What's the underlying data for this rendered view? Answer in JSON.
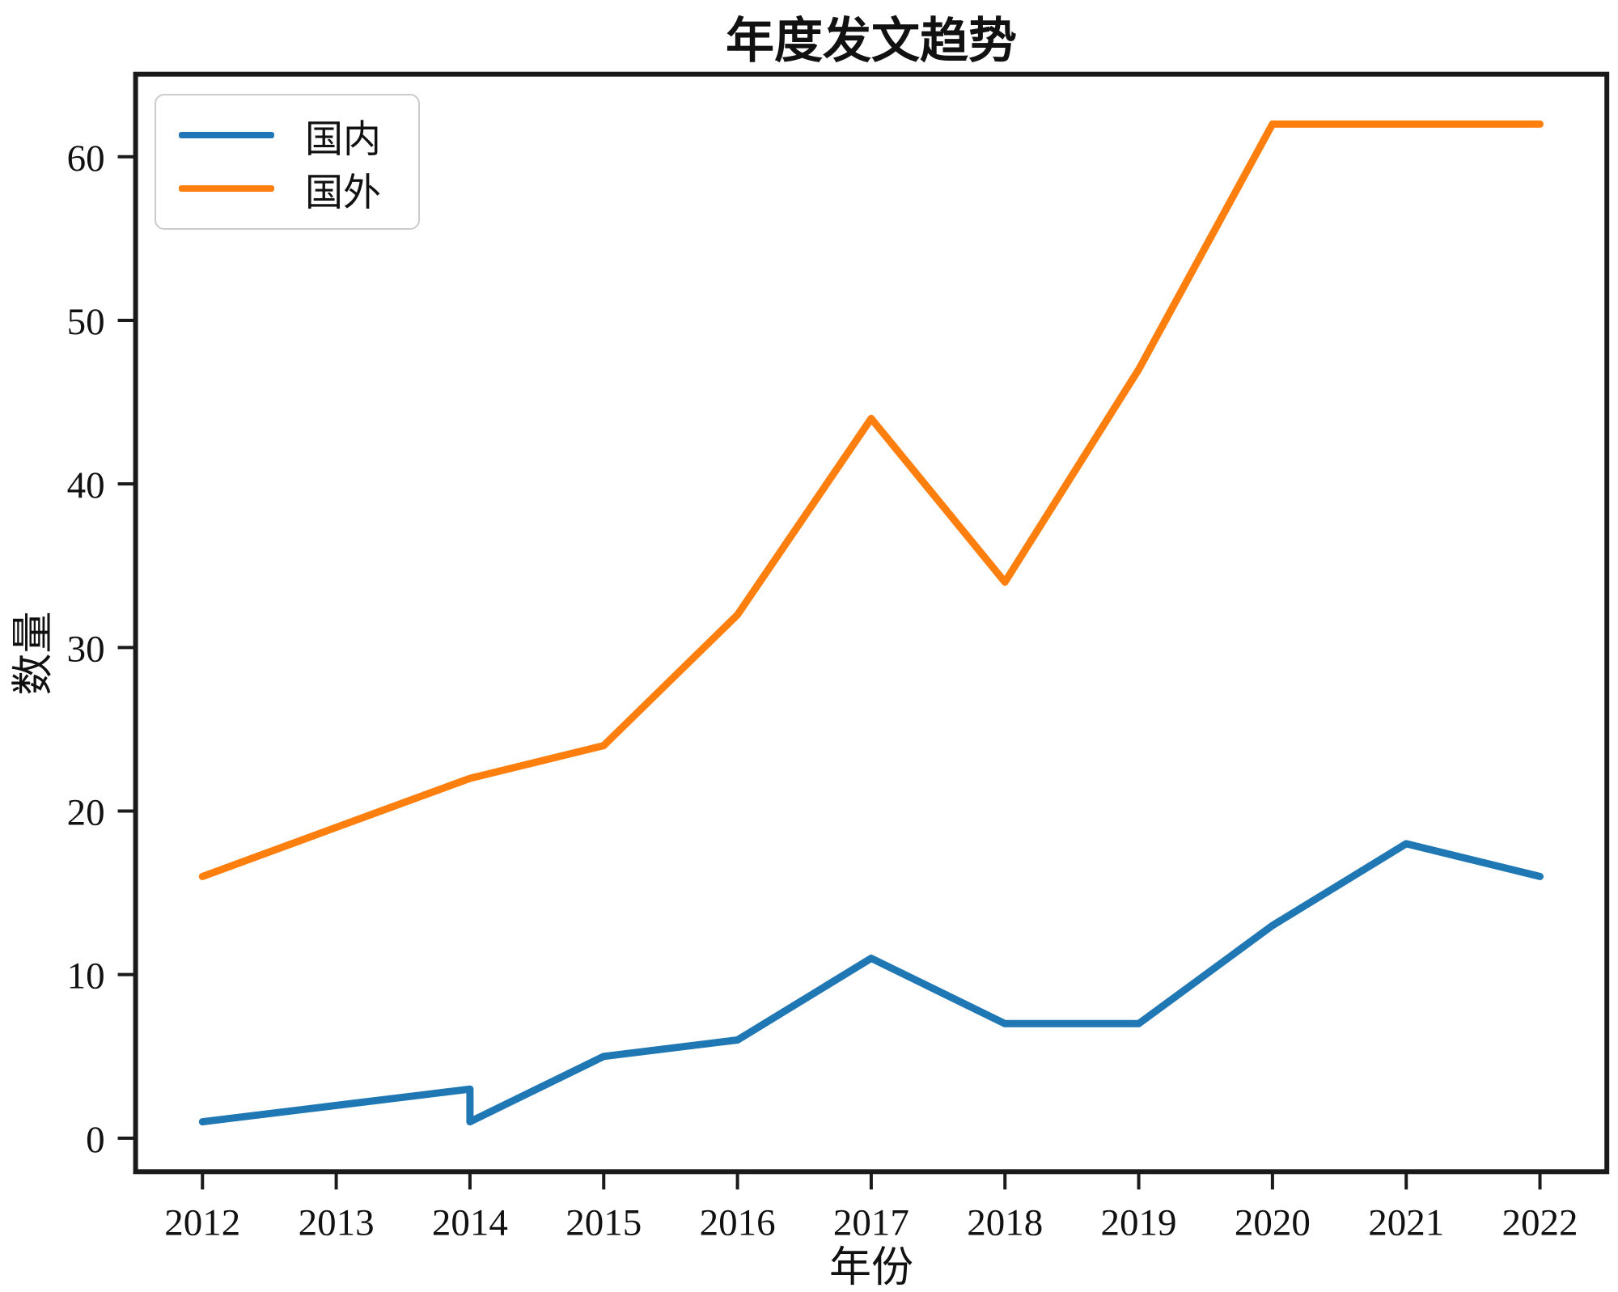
{
  "chart_data": {
    "type": "line",
    "title": "年度发文趋势",
    "xlabel": "年份",
    "ylabel": "数量",
    "x_ticks": [
      2012,
      2013,
      2014,
      2015,
      2016,
      2017,
      2018,
      2019,
      2020,
      2021,
      2022
    ],
    "y_ticks": [
      0,
      10,
      20,
      30,
      40,
      50,
      60
    ],
    "xlim": [
      2011.5,
      2022.5
    ],
    "ylim": [
      -2.05,
      65.05
    ],
    "grid": false,
    "legend_position": "upper-left",
    "axis_color": "#1a1a1a",
    "series": [
      {
        "name": "国内",
        "color": "#1f77b4",
        "points": [
          [
            2012,
            1
          ],
          [
            2013,
            2
          ],
          [
            2014,
            3
          ],
          [
            2014,
            1
          ],
          [
            2015,
            5
          ],
          [
            2016,
            6
          ],
          [
            2017,
            11
          ],
          [
            2018,
            7
          ],
          [
            2019,
            7
          ],
          [
            2020,
            13
          ],
          [
            2021,
            18
          ],
          [
            2022,
            16
          ]
        ]
      },
      {
        "name": "国外",
        "color": "#ff7f0e",
        "points": [
          [
            2012,
            16
          ],
          [
            2013,
            19
          ],
          [
            2014,
            22
          ],
          [
            2015,
            24
          ],
          [
            2016,
            32
          ],
          [
            2017,
            44
          ],
          [
            2018,
            34
          ],
          [
            2019,
            47
          ],
          [
            2020,
            62
          ],
          [
            2021,
            62
          ],
          [
            2022,
            62
          ]
        ]
      }
    ]
  }
}
